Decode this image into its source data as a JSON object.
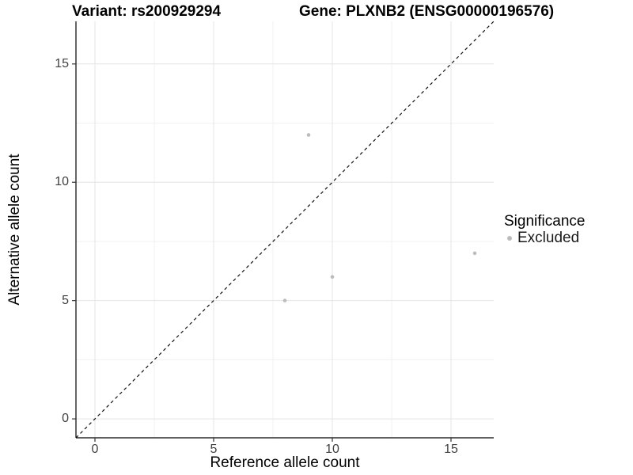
{
  "figure": {
    "title_left": "Variant: rs200929294",
    "title_right": "Gene: PLXNB2 (ENSG00000196576)"
  },
  "chart_data": {
    "type": "scatter",
    "title": "Variant: rs200929294   Gene: PLXNB2 (ENSG00000196576)",
    "xlabel": "Reference allele count",
    "ylabel": "Alternative allele count",
    "xlim": [
      -0.8,
      16.8
    ],
    "ylim": [
      -0.8,
      16.8
    ],
    "x_ticks": [
      0,
      5,
      10,
      15
    ],
    "y_ticks": [
      0,
      5,
      10,
      15
    ],
    "x_minor_gridlines": [
      2.5,
      7.5,
      12.5
    ],
    "y_minor_gridlines": [
      2.5,
      7.5,
      12.5
    ],
    "grid": "on",
    "series": [
      {
        "name": "Excluded",
        "color": "#bcbcbc",
        "points": [
          {
            "x": 9,
            "y": 12
          },
          {
            "x": 8,
            "y": 5
          },
          {
            "x": 10,
            "y": 6
          },
          {
            "x": 16,
            "y": 7
          }
        ]
      }
    ],
    "reference_line": {
      "type": "identity",
      "slope": 1,
      "intercept": 0,
      "style": "dashed",
      "color": "#111111"
    },
    "legend": {
      "title": "Significance",
      "position": "right",
      "items": [
        {
          "label": "Excluded",
          "marker_color": "#bcbcbc"
        }
      ]
    },
    "colors": {
      "grid_major": "#e4e4e4",
      "grid_minor": "#f1f1f1",
      "axis_line": "#000000",
      "tick_mark": "#333333"
    }
  }
}
